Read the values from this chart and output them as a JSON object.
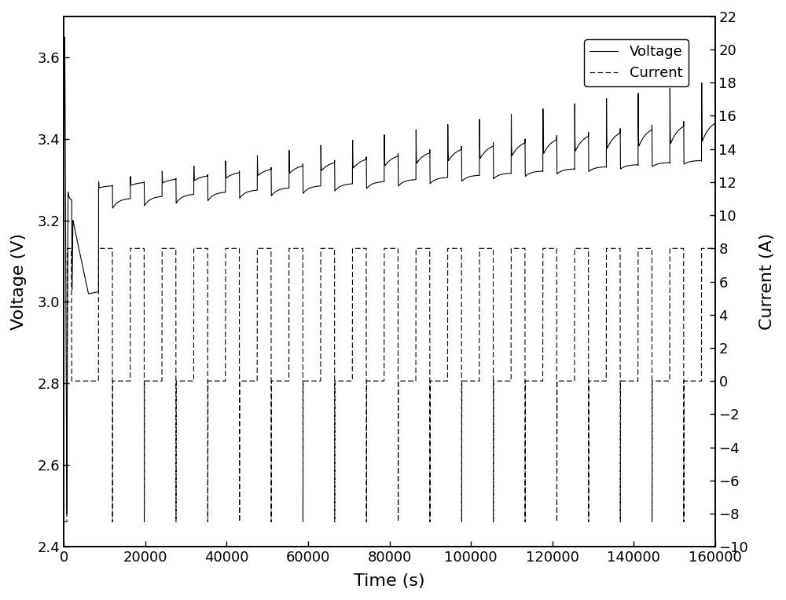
{
  "title": "",
  "xlabel": "Time (s)",
  "ylabel_left": "Voltage (V)",
  "ylabel_right": "Current (A)",
  "voltage_ylim": [
    2.4,
    3.7
  ],
  "current_ylim": [
    -10,
    22
  ],
  "xlim": [
    0,
    160000
  ],
  "xticks": [
    0,
    20000,
    40000,
    60000,
    80000,
    100000,
    120000,
    140000,
    160000
  ],
  "yticks_left": [
    2.4,
    2.6,
    2.8,
    3.0,
    3.2,
    3.4,
    3.6
  ],
  "yticks_right": [
    -10,
    -8,
    -6,
    -4,
    -2,
    0,
    2,
    4,
    6,
    8,
    10,
    12,
    14,
    16,
    18,
    20,
    22
  ],
  "legend_labels": [
    "Voltage",
    "Current"
  ],
  "line_color": "#000000",
  "background_color": "#ffffff"
}
